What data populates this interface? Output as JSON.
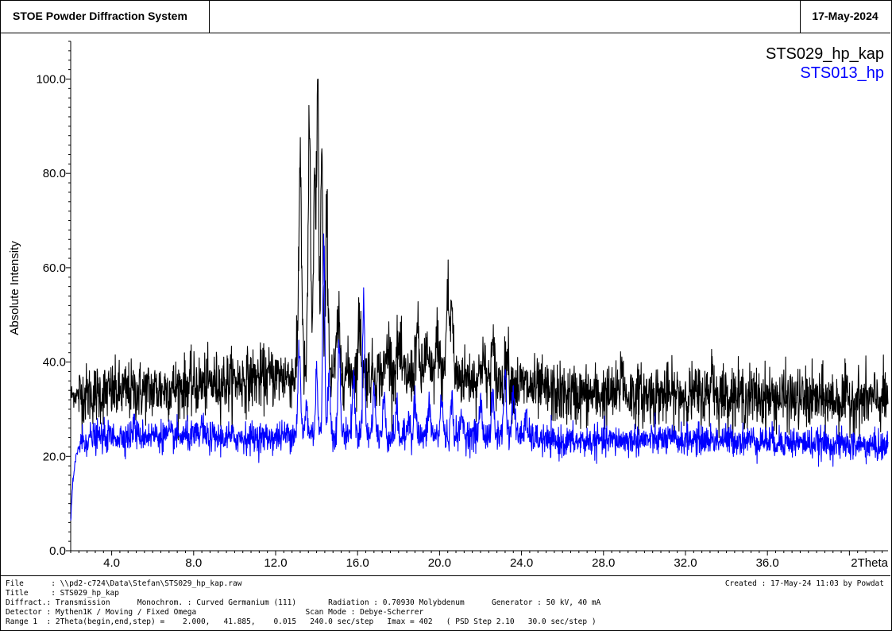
{
  "header": {
    "system_title": "STOE Powder Diffraction System",
    "date": "17-May-2024"
  },
  "chart_data": {
    "type": "line",
    "xlabel": "2Theta",
    "ylabel": "Absolute Intensity",
    "xlim": [
      2.0,
      41.885
    ],
    "ylim": [
      0,
      108
    ],
    "x_ticks": [
      "4.0",
      "8.0",
      "12.0",
      "16.0",
      "20.0",
      "24.0",
      "28.0",
      "32.0",
      "36.0"
    ],
    "y_ticks": [
      "0.0",
      "20.0",
      "40.0",
      "60.0",
      "80.0",
      "100.0"
    ],
    "legend_position": "top-right",
    "series": [
      {
        "name": "STS029_hp_kap",
        "color": "#000000",
        "baseline": [
          [
            2.0,
            33
          ],
          [
            6.0,
            34
          ],
          [
            8.0,
            35
          ],
          [
            10.0,
            36
          ],
          [
            12.0,
            37
          ],
          [
            13.0,
            37
          ],
          [
            15.0,
            38
          ],
          [
            18.0,
            37
          ],
          [
            21.0,
            37
          ],
          [
            24.0,
            35
          ],
          [
            26.0,
            33
          ],
          [
            30.0,
            33
          ],
          [
            34.0,
            33
          ],
          [
            38.0,
            32
          ],
          [
            41.885,
            32
          ]
        ],
        "noise": 3.2,
        "peaks": [
          [
            13.2,
            46,
            0.07
          ],
          [
            13.65,
            53,
            0.06
          ],
          [
            13.9,
            40,
            0.05
          ],
          [
            14.05,
            65,
            0.05
          ],
          [
            14.25,
            47,
            0.05
          ],
          [
            14.5,
            33,
            0.06
          ],
          [
            15.05,
            10,
            0.07
          ],
          [
            16.1,
            11,
            0.07
          ],
          [
            17.5,
            6,
            0.1
          ],
          [
            18.0,
            6,
            0.1
          ],
          [
            18.9,
            9,
            0.08
          ],
          [
            19.35,
            6,
            0.08
          ],
          [
            19.9,
            8,
            0.08
          ],
          [
            20.4,
            18,
            0.07
          ],
          [
            20.6,
            15,
            0.06
          ],
          [
            22.1,
            5,
            0.08
          ],
          [
            22.6,
            6,
            0.08
          ],
          [
            23.3,
            6,
            0.08
          ],
          [
            28.9,
            7,
            0.06
          ],
          [
            33.3,
            6,
            0.06
          ]
        ]
      },
      {
        "name": "STS013_hp",
        "color": "#0000ff",
        "baseline": [
          [
            2.0,
            6
          ],
          [
            2.05,
            11
          ],
          [
            2.15,
            16
          ],
          [
            2.3,
            21
          ],
          [
            2.5,
            23
          ],
          [
            3.0,
            24
          ],
          [
            6.0,
            24.5
          ],
          [
            9.0,
            24
          ],
          [
            12.0,
            24
          ],
          [
            13.0,
            25
          ],
          [
            15.0,
            25
          ],
          [
            18.0,
            24
          ],
          [
            21.0,
            24.5
          ],
          [
            24.0,
            24.5
          ],
          [
            25.5,
            23
          ],
          [
            30.0,
            23.5
          ],
          [
            35.0,
            23.5
          ],
          [
            41.885,
            22
          ]
        ],
        "noise": 1.6,
        "peaks": [
          [
            13.15,
            18,
            0.06
          ],
          [
            13.5,
            6,
            0.05
          ],
          [
            14.0,
            14,
            0.05
          ],
          [
            14.35,
            40,
            0.05
          ],
          [
            14.6,
            12,
            0.06
          ],
          [
            15.1,
            20,
            0.05
          ],
          [
            15.8,
            12,
            0.06
          ],
          [
            16.3,
            31,
            0.05
          ],
          [
            16.8,
            10,
            0.06
          ],
          [
            17.3,
            8,
            0.06
          ],
          [
            17.9,
            6,
            0.06
          ],
          [
            18.5,
            5,
            0.06
          ],
          [
            18.8,
            8,
            0.06
          ],
          [
            19.5,
            7,
            0.06
          ],
          [
            20.1,
            8,
            0.06
          ],
          [
            20.6,
            7,
            0.06
          ],
          [
            21.1,
            4,
            0.06
          ],
          [
            22.0,
            7,
            0.06
          ],
          [
            22.6,
            8,
            0.06
          ],
          [
            23.2,
            14,
            0.06
          ],
          [
            23.6,
            10,
            0.06
          ],
          [
            24.2,
            4,
            0.06
          ],
          [
            5.1,
            3,
            0.05
          ],
          [
            8.4,
            3,
            0.05
          ]
        ]
      }
    ]
  },
  "footer": {
    "lines": [
      "File      : \\\\pd2-c724\\Data\\Stefan\\STS029_hp_kap.raw",
      "Title     : STS029_hp_kap",
      "Diffract.: Transmission      Monochrom. : Curved Germanium (111)       Radiation : 0.70930 Molybdenum      Generator : 50 kV, 40 mA",
      "Detector : Mythen1K / Moving / Fixed Omega                        Scan Mode : Debye-Scherrer",
      "Range 1  : 2Theta(begin,end,step) =    2.000,   41.885,    0.015   240.0 sec/step   Imax = 402   ( PSD Step 2.10   30.0 sec/step )"
    ],
    "created": "Created : 17-May-24 11:03 by Powdat"
  }
}
